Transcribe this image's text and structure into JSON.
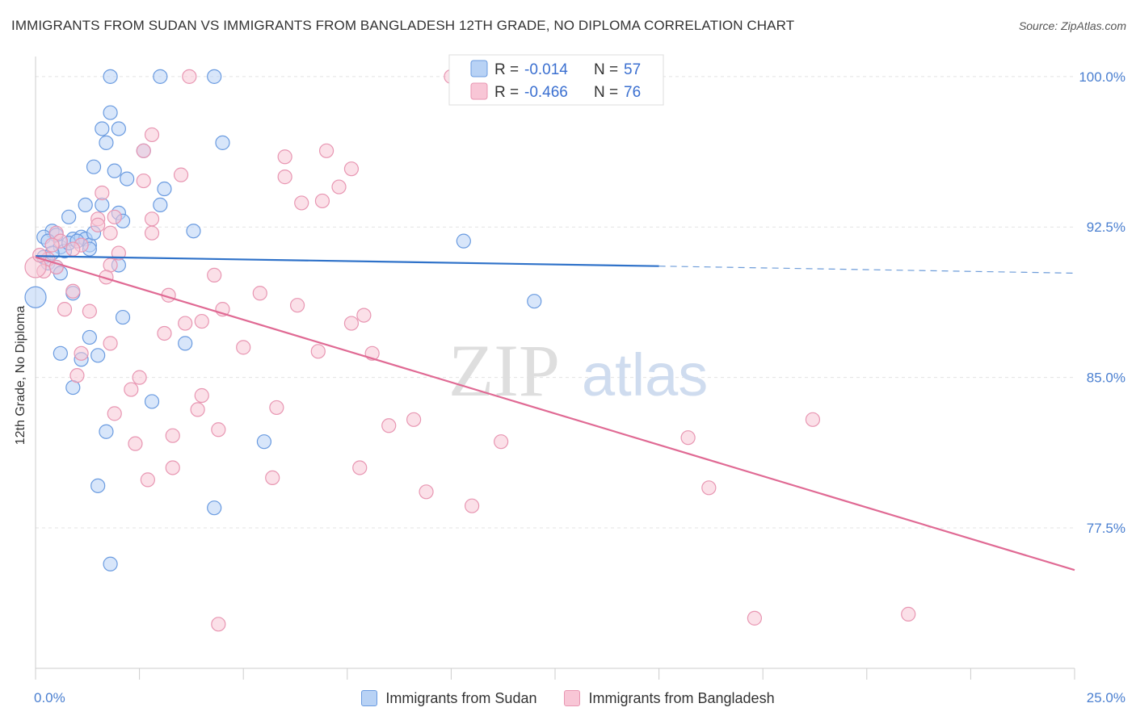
{
  "title": "IMMIGRANTS FROM SUDAN VS IMMIGRANTS FROM BANGLADESH 12TH GRADE, NO DIPLOMA CORRELATION CHART",
  "source": "Source: ZipAtlas.com",
  "watermark": {
    "part1": "ZIP",
    "part2": "atlas"
  },
  "colors": {
    "sudan_fill": "#b8d2f5",
    "sudan_stroke": "#6a9be0",
    "sudan_line": "#2f72c9",
    "bangladesh_fill": "#f8c6d6",
    "bangladesh_stroke": "#e896b2",
    "bangladesh_line": "#e06a94",
    "tick_text": "#4a7fd0",
    "grid": "#e3e3e3"
  },
  "legend": {
    "r_label": "R =",
    "n_label": "N =",
    "rows": [
      {
        "r": "-0.014",
        "n": "57"
      },
      {
        "r": "-0.466",
        "n": "76"
      }
    ]
  },
  "chart_data": {
    "type": "scatter",
    "title": "IMMIGRANTS FROM SUDAN VS IMMIGRANTS FROM BANGLADESH 12TH GRADE, NO DIPLOMA CORRELATION CHART",
    "xlabel": "",
    "ylabel": "12th Grade, No Diploma",
    "xlim": [
      0,
      25
    ],
    "ylim": [
      70.5,
      101
    ],
    "x_tick_labels": [
      {
        "value": 0,
        "label": "0.0%"
      },
      {
        "value": 25,
        "label": "25.0%"
      }
    ],
    "y_ticks": [
      {
        "value": 77.5,
        "label": "77.5%"
      },
      {
        "value": 85.0,
        "label": "85.0%"
      },
      {
        "value": 92.5,
        "label": "92.5%"
      },
      {
        "value": 100.0,
        "label": "100.0%"
      }
    ],
    "grid": true,
    "legend_position": "top-center",
    "series": [
      {
        "name": "Immigrants from Sudan",
        "r": -0.014,
        "n": 57,
        "trend": {
          "x0": 0,
          "y0": 91.05,
          "x1": 15,
          "y1": 90.55,
          "dashed_to_x": 25,
          "dashed_to_y": 90.2
        },
        "points": [
          [
            1.8,
            100
          ],
          [
            3.0,
            100
          ],
          [
            4.3,
            100
          ],
          [
            1.8,
            98.2
          ],
          [
            1.6,
            97.4
          ],
          [
            2.0,
            97.4
          ],
          [
            1.7,
            96.7
          ],
          [
            2.6,
            96.3
          ],
          [
            4.5,
            96.7
          ],
          [
            1.4,
            95.5
          ],
          [
            1.9,
            95.3
          ],
          [
            2.2,
            94.9
          ],
          [
            3.1,
            94.4
          ],
          [
            1.2,
            93.6
          ],
          [
            1.6,
            93.6
          ],
          [
            2.0,
            93.2
          ],
          [
            3.0,
            93.6
          ],
          [
            2.1,
            92.8
          ],
          [
            0.8,
            93.0
          ],
          [
            0.4,
            92.3
          ],
          [
            0.5,
            92.1
          ],
          [
            0.2,
            92.0
          ],
          [
            0.3,
            91.8
          ],
          [
            0.9,
            91.9
          ],
          [
            1.1,
            92.0
          ],
          [
            1.2,
            91.9
          ],
          [
            1.3,
            91.6
          ],
          [
            0.6,
            91.5
          ],
          [
            0.7,
            91.3
          ],
          [
            1.3,
            91.4
          ],
          [
            0.2,
            91.0
          ],
          [
            0.3,
            90.7
          ],
          [
            2.0,
            90.6
          ],
          [
            0.5,
            90.5
          ],
          [
            0.6,
            90.2
          ],
          [
            0.9,
            89.2
          ],
          [
            0.0,
            89.0
          ],
          [
            10.3,
            91.8
          ],
          [
            12.0,
            88.8
          ],
          [
            2.1,
            88.0
          ],
          [
            1.3,
            87.0
          ],
          [
            0.6,
            86.2
          ],
          [
            1.5,
            86.1
          ],
          [
            1.1,
            85.9
          ],
          [
            3.6,
            86.7
          ],
          [
            0.9,
            84.5
          ],
          [
            2.8,
            83.8
          ],
          [
            1.7,
            82.3
          ],
          [
            5.5,
            81.8
          ],
          [
            1.5,
            79.6
          ],
          [
            4.3,
            78.5
          ],
          [
            1.8,
            75.7
          ],
          [
            3.8,
            92.3
          ],
          [
            1.4,
            92.2
          ],
          [
            0.4,
            91.2
          ],
          [
            0.8,
            91.7
          ],
          [
            1.0,
            91.8
          ]
        ]
      },
      {
        "name": "Immigrants from Bangladesh",
        "r": -0.466,
        "n": 76,
        "trend": {
          "x0": 0,
          "y0": 91.0,
          "x1": 25,
          "y1": 75.4
        },
        "points": [
          [
            3.7,
            100
          ],
          [
            10.0,
            100
          ],
          [
            2.8,
            97.1
          ],
          [
            2.6,
            96.3
          ],
          [
            7.0,
            96.3
          ],
          [
            6.0,
            96.0
          ],
          [
            7.6,
            95.4
          ],
          [
            3.5,
            95.1
          ],
          [
            6.0,
            95.0
          ],
          [
            2.6,
            94.8
          ],
          [
            7.3,
            94.5
          ],
          [
            1.6,
            94.2
          ],
          [
            6.4,
            93.7
          ],
          [
            6.9,
            93.8
          ],
          [
            1.5,
            92.9
          ],
          [
            2.8,
            92.9
          ],
          [
            1.5,
            92.6
          ],
          [
            1.8,
            92.2
          ],
          [
            2.8,
            92.2
          ],
          [
            0.5,
            92.2
          ],
          [
            0.6,
            91.8
          ],
          [
            1.1,
            91.6
          ],
          [
            0.9,
            91.4
          ],
          [
            2.0,
            91.2
          ],
          [
            0.3,
            90.9
          ],
          [
            0.5,
            90.5
          ],
          [
            1.8,
            90.6
          ],
          [
            0.2,
            90.3
          ],
          [
            1.7,
            90.0
          ],
          [
            4.3,
            90.1
          ],
          [
            0.9,
            89.3
          ],
          [
            3.2,
            89.1
          ],
          [
            5.4,
            89.2
          ],
          [
            0.7,
            88.4
          ],
          [
            1.3,
            88.3
          ],
          [
            4.5,
            88.4
          ],
          [
            6.3,
            88.6
          ],
          [
            7.9,
            88.1
          ],
          [
            3.6,
            87.7
          ],
          [
            4.0,
            87.8
          ],
          [
            7.6,
            87.7
          ],
          [
            3.1,
            87.2
          ],
          [
            1.8,
            86.7
          ],
          [
            5.0,
            86.5
          ],
          [
            1.1,
            86.2
          ],
          [
            6.8,
            86.3
          ],
          [
            8.1,
            86.2
          ],
          [
            1.0,
            85.1
          ],
          [
            2.5,
            85.0
          ],
          [
            2.3,
            84.4
          ],
          [
            4.0,
            84.1
          ],
          [
            1.9,
            83.2
          ],
          [
            3.9,
            83.4
          ],
          [
            5.8,
            83.5
          ],
          [
            4.4,
            82.4
          ],
          [
            8.5,
            82.6
          ],
          [
            9.1,
            82.9
          ],
          [
            3.3,
            82.1
          ],
          [
            2.4,
            81.7
          ],
          [
            11.2,
            81.8
          ],
          [
            15.7,
            82.0
          ],
          [
            18.7,
            82.9
          ],
          [
            3.3,
            80.5
          ],
          [
            7.8,
            80.5
          ],
          [
            2.7,
            79.9
          ],
          [
            5.7,
            80.0
          ],
          [
            9.4,
            79.3
          ],
          [
            16.2,
            79.5
          ],
          [
            10.5,
            78.6
          ],
          [
            17.3,
            73.0
          ],
          [
            21.0,
            73.2
          ],
          [
            4.4,
            72.7
          ],
          [
            0.0,
            90.5
          ],
          [
            0.1,
            91.1
          ],
          [
            0.4,
            91.6
          ],
          [
            1.9,
            93.0
          ]
        ]
      }
    ]
  },
  "bottom_legend": [
    {
      "label": "Immigrants from Sudan"
    },
    {
      "label": "Immigrants from Bangladesh"
    }
  ]
}
